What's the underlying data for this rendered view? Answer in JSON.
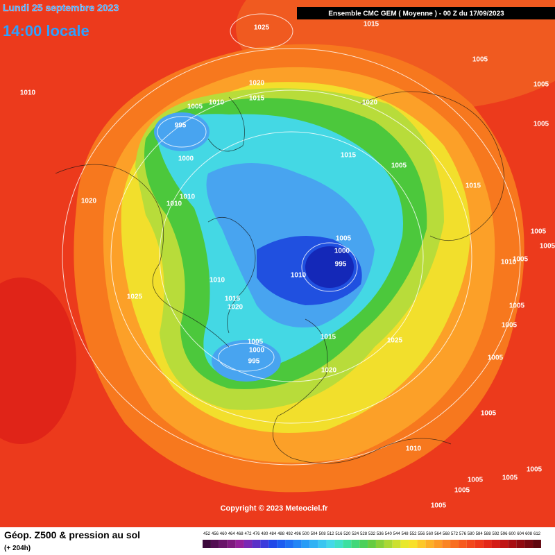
{
  "header": {
    "date": "Lundi 25 septembre 2023",
    "time": "14:00 locale",
    "model": "Ensemble CMC GEM  ( Moyenne )  -  00 Z du 17/09/2023"
  },
  "copyright": "Copyright © 2023 Meteociel.fr",
  "legend": {
    "title": "Géop. Z500 & pression au sol",
    "lead": "(+ 204h)",
    "scale": [
      452,
      456,
      460,
      464,
      468,
      472,
      476,
      480,
      484,
      488,
      492,
      496,
      500,
      504,
      508,
      512,
      516,
      520,
      524,
      528,
      532,
      536,
      540,
      544,
      548,
      552,
      556,
      560,
      564,
      568,
      572,
      576,
      580,
      584,
      588,
      592,
      596,
      600,
      604,
      608,
      612
    ],
    "colors": [
      "#3c0a3c",
      "#520f52",
      "#681468",
      "#7e1a7e",
      "#94209a",
      "#7a28b4",
      "#5a30c8",
      "#3c3cdc",
      "#2048e8",
      "#1c5cf0",
      "#1e70f4",
      "#2286f6",
      "#289cf6",
      "#30b2f4",
      "#3ac6f0",
      "#44d8e8",
      "#40e0c8",
      "#3ce0a0",
      "#40d87a",
      "#4cd05a",
      "#66cc40",
      "#88d038",
      "#aad834",
      "#cce030",
      "#e8e82c",
      "#f8e02a",
      "#fcc828",
      "#fcb026",
      "#fc9a24",
      "#fa8422",
      "#f86e20",
      "#f65a1e",
      "#f2481c",
      "#ee381a",
      "#e42818",
      "#d41c16",
      "#c01414",
      "#a80e12",
      "#900a10",
      "#780810",
      "#60060e"
    ]
  },
  "isobars": [
    1025,
    1015,
    1005,
    1010,
    1020,
    1015,
    1010,
    1005,
    1020,
    1005,
    995,
    1005,
    1000,
    1015,
    1005,
    1015,
    1010,
    1010,
    1020,
    1005,
    1000,
    995,
    1010,
    1010,
    1005,
    1005,
    1010,
    1005,
    1025,
    1015,
    1020,
    1005,
    1005,
    1015,
    1005,
    1000,
    995,
    1025,
    1005,
    1020,
    1005,
    1010,
    1005,
    1005,
    1005,
    1005,
    1005
  ]
}
